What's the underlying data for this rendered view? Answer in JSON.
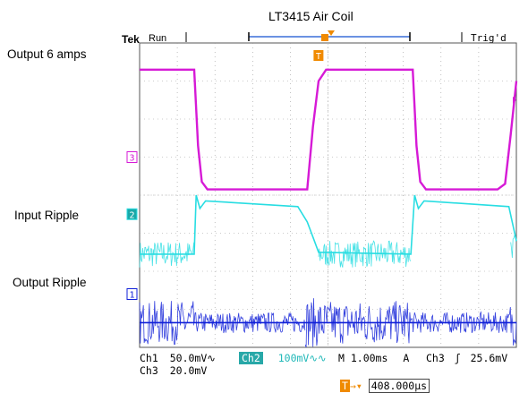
{
  "title": "LT3415 Air Coil",
  "labels": {
    "output_current": "Output 6 amps",
    "input_ripple": "Input Ripple",
    "output_ripple": "Output Ripple"
  },
  "scope": {
    "brand": "Tek",
    "run_state": "Run",
    "trigger_status": "Trig'd",
    "trigger_marker": "T",
    "channel_markers": {
      "ch1": "1",
      "ch2": "2",
      "ch3": "3"
    },
    "readout": {
      "ch1_label": "Ch1",
      "ch1_scale": "50.0mV",
      "ch2_label": "Ch2",
      "ch2_scale": "100mV",
      "ch3_label": "Ch3",
      "ch3_scale": "20.0mV",
      "timebase": "M 1.00ms",
      "trigger_mode": "A",
      "trigger_source": "Ch3",
      "trigger_slope": "ʃ",
      "trigger_level": "25.6mV",
      "trigger_position": "408.000µs"
    },
    "colors": {
      "ch1": "#1020d8",
      "ch2": "#28dde2",
      "ch3": "#d61ad6",
      "grid": "#9a9a9a",
      "trigger": "#f08a00"
    }
  },
  "chart_data": {
    "type": "line",
    "title": "LT3415 Air Coil",
    "x_unit": "divisions (1.00 ms/div)",
    "xlim": [
      0,
      10
    ],
    "ylim": [
      -4,
      4
    ],
    "grid": true,
    "series": [
      {
        "name": "Output 6 amps",
        "points": [
          [
            0,
            3.3
          ],
          [
            1.45,
            3.3
          ],
          [
            1.55,
            1.3
          ],
          [
            1.65,
            0.35
          ],
          [
            1.8,
            0.15
          ],
          [
            2.5,
            0.15
          ],
          [
            4.0,
            0.15
          ],
          [
            4.45,
            0.15
          ],
          [
            4.6,
            1.8
          ],
          [
            4.75,
            3.0
          ],
          [
            4.95,
            3.3
          ],
          [
            7.0,
            3.3
          ],
          [
            7.25,
            3.3
          ],
          [
            7.35,
            1.3
          ],
          [
            7.45,
            0.35
          ],
          [
            7.6,
            0.15
          ],
          [
            9.5,
            0.15
          ],
          [
            9.7,
            0.3
          ],
          [
            9.85,
            1.6
          ],
          [
            10,
            3.0
          ]
        ]
      },
      {
        "name": "Input Ripple",
        "points": [
          [
            0,
            -1.55
          ],
          [
            1.45,
            -1.55
          ],
          [
            1.5,
            0.0
          ],
          [
            1.6,
            -0.35
          ],
          [
            1.75,
            -0.15
          ],
          [
            4.2,
            -0.3
          ],
          [
            4.45,
            -0.7
          ],
          [
            4.6,
            -1.1
          ],
          [
            4.75,
            -1.5
          ],
          [
            7.2,
            -1.55
          ],
          [
            7.3,
            0.0
          ],
          [
            7.4,
            -0.35
          ],
          [
            7.55,
            -0.15
          ],
          [
            9.8,
            -0.3
          ],
          [
            10,
            -1.2
          ]
        ]
      },
      {
        "name": "Output Ripple",
        "points": [
          [
            0,
            -3.35
          ],
          [
            10,
            -3.35
          ]
        ]
      }
    ]
  }
}
